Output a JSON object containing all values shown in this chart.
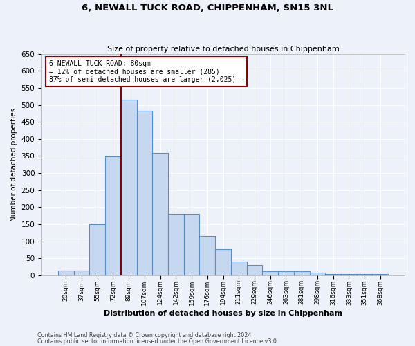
{
  "title_line1": "6, NEWALL TUCK ROAD, CHIPPENHAM, SN15 3NL",
  "title_line2": "Size of property relative to detached houses in Chippenham",
  "xlabel": "Distribution of detached houses by size in Chippenham",
  "ylabel": "Number of detached properties",
  "categories": [
    "20sqm",
    "37sqm",
    "55sqm",
    "72sqm",
    "89sqm",
    "107sqm",
    "124sqm",
    "142sqm",
    "159sqm",
    "176sqm",
    "194sqm",
    "211sqm",
    "229sqm",
    "246sqm",
    "263sqm",
    "281sqm",
    "298sqm",
    "316sqm",
    "333sqm",
    "351sqm",
    "368sqm"
  ],
  "values": [
    15,
    15,
    150,
    348,
    516,
    483,
    360,
    180,
    180,
    115,
    77,
    40,
    30,
    12,
    13,
    12,
    8,
    3,
    3,
    3,
    3
  ],
  "bar_color": "#c5d8f0",
  "bar_edge_color": "#5b8fc9",
  "vline_color": "#8b0000",
  "vline_pos": 3.5,
  "annotation_title": "6 NEWALL TUCK ROAD: 80sqm",
  "annotation_line1": "← 12% of detached houses are smaller (285)",
  "annotation_line2": "87% of semi-detached houses are larger (2,025) →",
  "annotation_box_edgecolor": "#8b0000",
  "ylim_max": 650,
  "ytick_step": 50,
  "footer_line1": "Contains HM Land Registry data © Crown copyright and database right 2024.",
  "footer_line2": "Contains public sector information licensed under the Open Government Licence v3.0.",
  "bg_color": "#edf1fa",
  "grid_color": "#ffffff"
}
